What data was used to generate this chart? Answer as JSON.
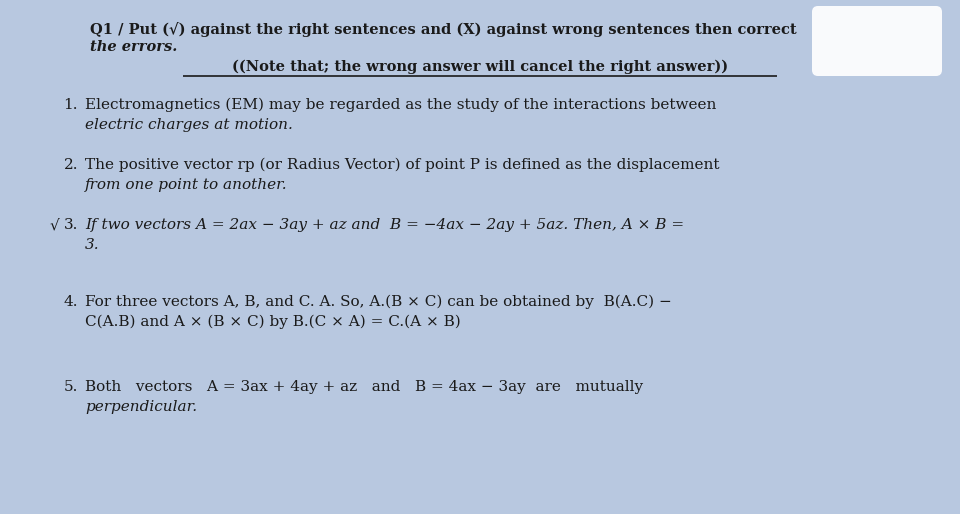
{
  "bg_color": "#b8c8e0",
  "text_color": "#1a1a1a",
  "title_line1": "Q1 / Put (√) against the right sentences and (X) against wrong sentences then correct",
  "title_line2": "the errors.",
  "note": "((Note that; the wrong answer will cancel the right answer))",
  "items": [
    {
      "num": "1.",
      "line1": "Electromagnetics (EM) may be regarded as the study of the interactions between",
      "line2": "electric charges at motion."
    },
    {
      "num": "2.",
      "line1": "The positive vector rp (or Radius Vector) of point P is defined as the displacement",
      "line2": "from one point to another."
    },
    {
      "num": "3.",
      "prefix": "√",
      "line1": "If two vectors A = 2ax − 3ay + az and  B = −4ax − 2ay + 5az. Then, A × B =",
      "line2": "3."
    },
    {
      "num": "4.",
      "line1": "For three vectors A, B, and C. A. So, A.(B × C) can be obtained by  B(A.C) −",
      "line2": "C(A.B) and A × (B × C) by B.(C × A) = C.(A × B)"
    },
    {
      "num": "5.",
      "line1": "Both   vectors   A = 3ax + 4ay + az   and   B = 4ax − 3ay  are   mutually",
      "line2": "perpendicular."
    }
  ]
}
